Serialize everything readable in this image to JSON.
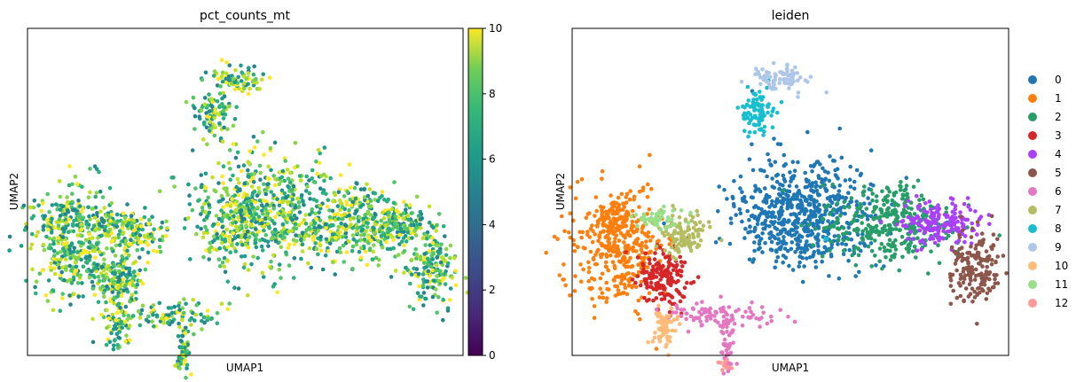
{
  "chart_data": [
    {
      "type": "scatter",
      "title": "pct_counts_mt",
      "xlabel": "UMAP1",
      "ylabel": "UMAP2",
      "colormap": "viridis",
      "colorbar": {
        "min": 0,
        "max": 10,
        "ticks": [
          "0",
          "2",
          "4",
          "6",
          "8",
          "10"
        ]
      },
      "x_ticks_shown": false,
      "y_ticks_shown": false,
      "grid": false
    },
    {
      "type": "scatter",
      "title": "leiden",
      "xlabel": "UMAP1",
      "ylabel": "UMAP2",
      "x_ticks_shown": false,
      "y_ticks_shown": false,
      "grid": false,
      "legend_placement": "right",
      "categories": [
        "0",
        "1",
        "2",
        "3",
        "4",
        "5",
        "6",
        "7",
        "8",
        "9",
        "10",
        "11",
        "12"
      ],
      "colors": [
        "#1f77b4",
        "#ff7f0e",
        "#279e68",
        "#d62728",
        "#aa40fc",
        "#8c564b",
        "#e377c2",
        "#b5bd61",
        "#17becf",
        "#aec7e8",
        "#ffbb78",
        "#98df8a",
        "#ff9896"
      ]
    }
  ]
}
